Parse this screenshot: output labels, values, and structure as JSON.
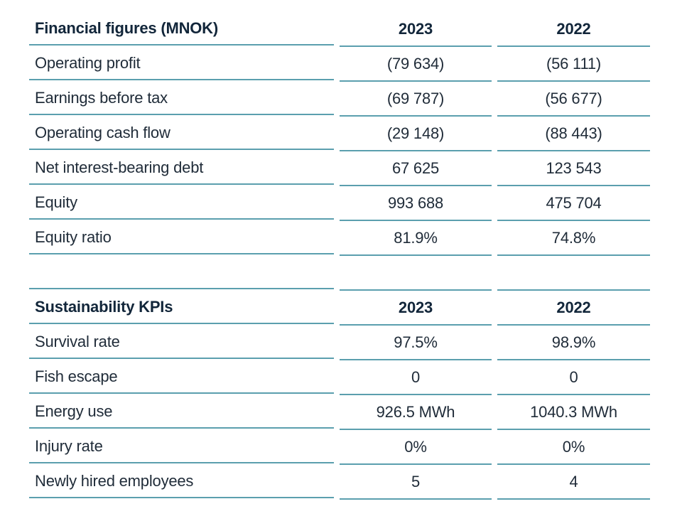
{
  "tables": [
    {
      "title": "Financial figures (MNOK)",
      "columns": [
        "2023",
        "2022"
      ],
      "rows": [
        {
          "label": "Operating profit",
          "values": [
            "(79 634)",
            "(56 111)"
          ]
        },
        {
          "label": "Earnings before tax",
          "values": [
            "(69 787)",
            "(56 677)"
          ]
        },
        {
          "label": "Operating cash flow",
          "values": [
            "(29 148)",
            "(88 443)"
          ]
        },
        {
          "label": "Net interest-bearing debt",
          "values": [
            "67 625",
            "123 543"
          ]
        },
        {
          "label": "Equity",
          "values": [
            "993 688",
            "475 704"
          ]
        },
        {
          "label": "Equity ratio",
          "values": [
            "81.9%",
            "74.8%"
          ]
        }
      ]
    },
    {
      "title": "Sustainability KPIs",
      "columns": [
        "2023",
        "2022"
      ],
      "rows": [
        {
          "label": "Survival rate",
          "values": [
            "97.5%",
            "98.9%"
          ]
        },
        {
          "label": "Fish escape",
          "values": [
            "0",
            "0"
          ]
        },
        {
          "label": "Energy use",
          "values": [
            "926.5 MWh",
            "1040.3 MWh"
          ]
        },
        {
          "label": "Injury rate",
          "values": [
            "0%",
            "0%"
          ]
        },
        {
          "label": "Newly hired employees",
          "values": [
            "5",
            "4"
          ]
        }
      ]
    }
  ],
  "colors": {
    "rule": "#5b9fae",
    "text": "#1f2b38"
  }
}
